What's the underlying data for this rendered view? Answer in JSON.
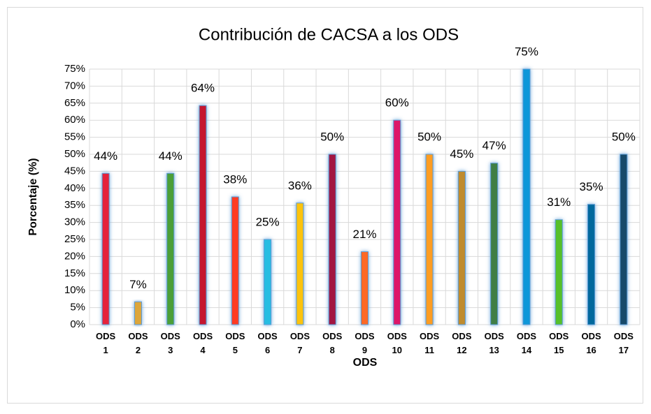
{
  "chart_data": {
    "type": "bar",
    "title": "Contribución de CACSA a los ODS",
    "x_label": "ODS",
    "y_label": "Porcentaje (%)",
    "categories": [
      "ODS 1",
      "ODS 2",
      "ODS 3",
      "ODS 4",
      "ODS 5",
      "ODS 6",
      "ODS 7",
      "ODS 8",
      "ODS 9",
      "ODS 10",
      "ODS 11",
      "ODS 12",
      "ODS 13",
      "ODS 14",
      "ODS 15",
      "ODS 16",
      "ODS 17"
    ],
    "values": [
      44.4,
      6.7,
      44.4,
      64.3,
      37.5,
      25,
      35.7,
      50,
      21.4,
      60,
      50,
      45,
      47.4,
      75,
      30.8,
      35.3,
      50
    ],
    "value_labels": [
      "44%",
      "7%",
      "44%",
      "64%",
      "38%",
      "25%",
      "36%",
      "50%",
      "21%",
      "60%",
      "50%",
      "45%",
      "47%",
      "75%",
      "31%",
      "35%",
      "50%"
    ],
    "colors": [
      "#e5243b",
      "#dda63a",
      "#4c9f38",
      "#c5192d",
      "#ff3a21",
      "#26bde2",
      "#fcc30b",
      "#a21942",
      "#fd6925",
      "#dd1367",
      "#fd9d24",
      "#bf8b2e",
      "#3f7e44",
      "#0a97d9",
      "#56c02b",
      "#00689d",
      "#19486a"
    ],
    "ylim": [
      0,
      75
    ],
    "yticks": [
      {
        "value": 0,
        "label": "0%"
      },
      {
        "value": 5,
        "label": "5%"
      },
      {
        "value": 10,
        "label": "10%"
      },
      {
        "value": 15,
        "label": "15%"
      },
      {
        "value": 20,
        "label": "20%"
      },
      {
        "value": 25,
        "label": "25%"
      },
      {
        "value": 30,
        "label": "30%"
      },
      {
        "value": 35,
        "label": "35%"
      },
      {
        "value": 40,
        "label": "40%"
      },
      {
        "value": 45,
        "label": "45%"
      },
      {
        "value": 50,
        "label": "50%"
      },
      {
        "value": 55,
        "label": "55%"
      },
      {
        "value": 60,
        "label": "60%"
      },
      {
        "value": 65,
        "label": "65%"
      },
      {
        "value": 70,
        "label": "70%"
      },
      {
        "value": 75,
        "label": "75%"
      }
    ],
    "grid": true
  }
}
